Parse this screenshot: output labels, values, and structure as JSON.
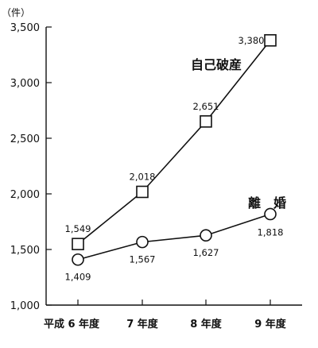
{
  "chart_data": {
    "type": "line",
    "unit_label": "（件）",
    "categories": [
      "平成 6 年度",
      "7 年度",
      "8 年度",
      "9 年度"
    ],
    "ylim": [
      1000,
      3500
    ],
    "yticks": [
      1000,
      1500,
      2000,
      2500,
      3000,
      3500
    ],
    "ytick_labels": [
      "1,000",
      "1,500",
      "2,000",
      "2,500",
      "3,000",
      "3,500"
    ],
    "grid": false,
    "series": [
      {
        "name": "自己破産",
        "marker": "square",
        "values": [
          1549,
          2018,
          2651,
          3380
        ],
        "value_labels": [
          "1,549",
          "2,018",
          "2,651",
          "3,380"
        ]
      },
      {
        "name": "離　婚",
        "marker": "circle",
        "values": [
          1409,
          1567,
          1627,
          1818
        ],
        "value_labels": [
          "1,409",
          "1,567",
          "1,627",
          "1,818"
        ]
      }
    ]
  }
}
